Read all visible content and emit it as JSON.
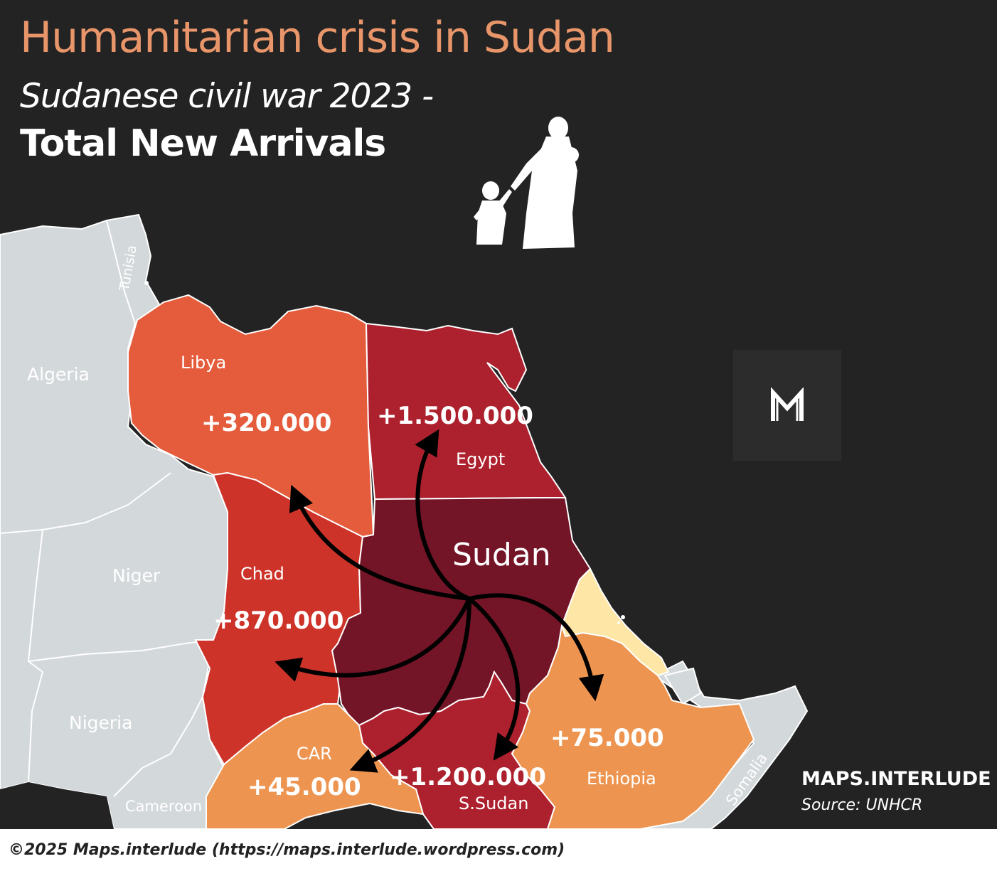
{
  "header": {
    "title": "Humanitarian crisis in Sudan",
    "subtitle": "Sudanese civil war  2023 -",
    "subtitle2": "Total New Arrivals"
  },
  "regions": {
    "libya": {
      "name": "Libya",
      "arrivals": "+320.000",
      "color": "#e55c3c"
    },
    "egypt": {
      "name": "Egypt",
      "arrivals": "+1.500.000",
      "color": "#ad202d"
    },
    "chad": {
      "name": "Chad",
      "arrivals": "+870.000",
      "color": "#cd3329"
    },
    "car": {
      "name": "CAR",
      "arrivals": "+45.000",
      "color": "#ed9550"
    },
    "south_sudan": {
      "name": "S.Sudan",
      "arrivals": "+1.200.000",
      "color": "#ad202d"
    },
    "ethiopia": {
      "name": "Ethiopia",
      "arrivals": "+75.000",
      "color": "#ed9550"
    },
    "sudan": {
      "name": "Sudan",
      "color": "#731427"
    }
  },
  "other_countries": [
    "Algeria",
    "Niger",
    "Nigeria",
    "Cameroon",
    "Tunisia",
    "Somalia"
  ],
  "legend_colors": {
    "background": "#232323",
    "land": "#d3d8db",
    "eritrea": "#fde6a6"
  },
  "icons": {
    "refugees": "refugee-mother-child-icon",
    "logo": "maps-interlude-logo-icon"
  },
  "credits": {
    "brand": "MAPS.INTERLUDE",
    "source": "Source: UNHCR",
    "footer": "©2025 Maps.interlude (https://maps.interlude.wordpress.com)"
  }
}
